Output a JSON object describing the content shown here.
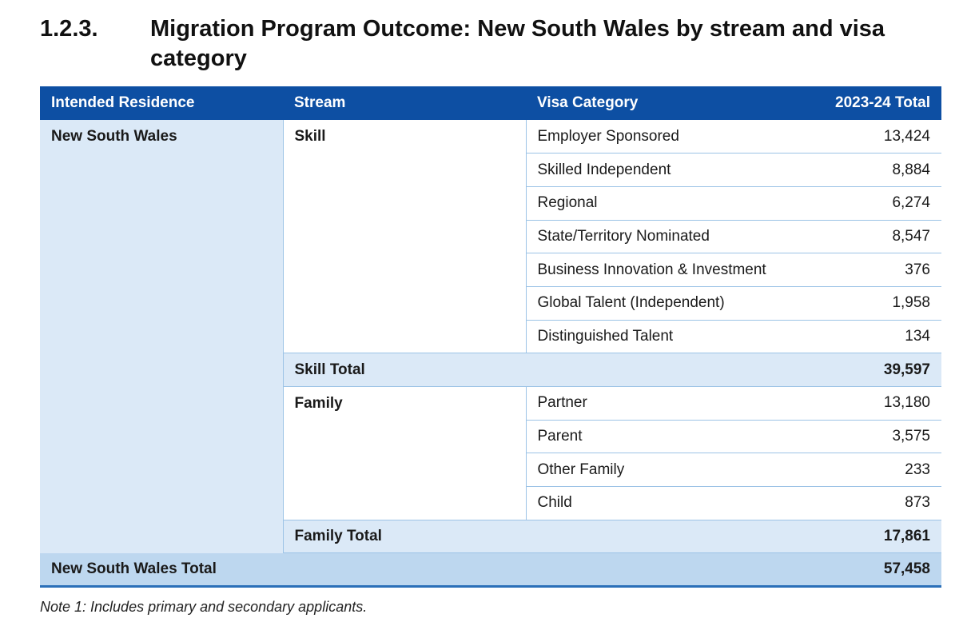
{
  "heading": {
    "number": "1.2.3.",
    "title": "Migration Program Outcome: New South Wales by stream and visa category"
  },
  "table": {
    "headers": [
      "Intended Residence",
      "Stream",
      "Visa Category",
      "2023-24 Total"
    ],
    "residence": "New South Wales",
    "skill": {
      "stream": "Skill",
      "rows": [
        {
          "category": "Employer Sponsored",
          "total": "13,424"
        },
        {
          "category": "Skilled Independent",
          "total": "8,884"
        },
        {
          "category": "Regional",
          "total": "6,274"
        },
        {
          "category": "State/Territory Nominated",
          "total": "8,547"
        },
        {
          "category": "Business Innovation & Investment",
          "total": "376"
        },
        {
          "category": "Global Talent (Independent)",
          "total": "1,958"
        },
        {
          "category": "Distinguished Talent",
          "total": "134"
        }
      ],
      "subtotal_label": "Skill Total",
      "subtotal_value": "39,597"
    },
    "family": {
      "stream": "Family",
      "rows": [
        {
          "category": "Partner",
          "total": "13,180"
        },
        {
          "category": "Parent",
          "total": "3,575"
        },
        {
          "category": "Other Family",
          "total": "233"
        },
        {
          "category": "Child",
          "total": "873"
        }
      ],
      "subtotal_label": "Family Total",
      "subtotal_value": "17,861"
    },
    "grand_total_label": "New South Wales Total",
    "grand_total_value": "57,458"
  },
  "note": "Note 1: Includes primary and secondary applicants.",
  "colors": {
    "header_bg": "#0d4fa3",
    "light_fill": "#dbe9f7",
    "total_fill": "#bdd7ef",
    "border": "#9cc3e6"
  }
}
